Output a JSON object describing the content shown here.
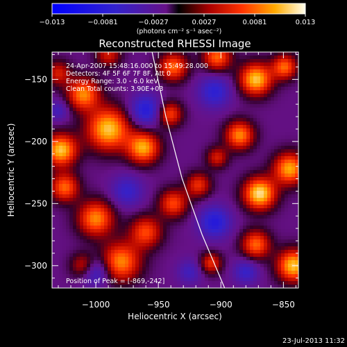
{
  "chart_data": {
    "type": "heatmap",
    "title": "Reconstructed RHESSI Image",
    "xlabel": "Heliocentric X (arcsec)",
    "ylabel": "Heliocentric Y (arcsec)",
    "xlim": [
      -1035,
      -838
    ],
    "ylim": [
      -318,
      -128
    ],
    "xticks": [
      -1000,
      -950,
      -900,
      -850
    ],
    "xtick_labels": [
      "−1000",
      "−950",
      "−900",
      "−850"
    ],
    "yticks": [
      -150,
      -200,
      -250,
      -300
    ],
    "ytick_labels": [
      "−150",
      "−200",
      "−250",
      "−300"
    ],
    "colorbar": {
      "min": -0.013,
      "max": 0.013,
      "tick_labels": [
        "−0.013",
        "−0.0081",
        "−0.0027",
        "0.0027",
        "0.0081",
        "0.013"
      ],
      "label": "(photons cm⁻² s⁻¹ asec⁻²)"
    },
    "annotations": [
      "24-Apr-2007 15:48:16.000 to 15:49:28.000",
      "Detectors: 4F 5F 6F 7F 8F, Att 0",
      "Energy Range: 3.0 - 6.0 keV",
      "Clean     Total counts: 3.90E+03"
    ],
    "peak": {
      "label": "Position of Peak = [-869,-242]",
      "x": -869,
      "y": -242
    },
    "limb": [
      [
        -955,
        -128
      ],
      [
        -944,
        -180
      ],
      [
        -931,
        -230
      ],
      [
        -915,
        -275
      ],
      [
        -897,
        -318
      ]
    ],
    "sources": [
      {
        "x": -1028,
        "y": -207,
        "amp": 0.012,
        "sigma": 9
      },
      {
        "x": -1010,
        "y": -162,
        "amp": 0.01,
        "sigma": 9
      },
      {
        "x": -990,
        "y": -190,
        "amp": 0.012,
        "sigma": 12
      },
      {
        "x": -962,
        "y": -205,
        "amp": 0.011,
        "sigma": 9
      },
      {
        "x": -941,
        "y": -178,
        "amp": 0.008,
        "sigma": 7
      },
      {
        "x": -938,
        "y": -140,
        "amp": 0.009,
        "sigma": 8
      },
      {
        "x": -1000,
        "y": -262,
        "amp": 0.01,
        "sigma": 10
      },
      {
        "x": -1025,
        "y": -237,
        "amp": 0.009,
        "sigma": 8
      },
      {
        "x": -980,
        "y": -297,
        "amp": 0.01,
        "sigma": 11
      },
      {
        "x": -960,
        "y": -273,
        "amp": 0.008,
        "sigma": 9
      },
      {
        "x": -938,
        "y": -250,
        "amp": 0.008,
        "sigma": 8
      },
      {
        "x": -918,
        "y": -235,
        "amp": 0.007,
        "sigma": 7
      },
      {
        "x": -903,
        "y": -213,
        "amp": 0.006,
        "sigma": 6
      },
      {
        "x": -869,
        "y": -242,
        "amp": 0.013,
        "sigma": 9
      },
      {
        "x": -845,
        "y": -222,
        "amp": 0.011,
        "sigma": 9
      },
      {
        "x": -885,
        "y": -195,
        "amp": 0.01,
        "sigma": 8
      },
      {
        "x": -872,
        "y": -150,
        "amp": 0.012,
        "sigma": 9
      },
      {
        "x": -903,
        "y": -132,
        "amp": 0.009,
        "sigma": 8
      },
      {
        "x": -849,
        "y": -140,
        "amp": 0.009,
        "sigma": 7
      },
      {
        "x": -842,
        "y": -300,
        "amp": 0.012,
        "sigma": 9
      },
      {
        "x": -872,
        "y": -283,
        "amp": 0.009,
        "sigma": 8
      },
      {
        "x": -908,
        "y": -298,
        "amp": 0.007,
        "sigma": 6
      },
      {
        "x": -1030,
        "y": -145,
        "amp": 0.006,
        "sigma": 7
      },
      {
        "x": -990,
        "y": -130,
        "amp": 0.006,
        "sigma": 7
      },
      {
        "x": -1010,
        "y": -300,
        "amp": 0.006,
        "sigma": 7
      },
      {
        "x": -960,
        "y": -175,
        "amp": -0.007,
        "sigma": 9
      },
      {
        "x": -975,
        "y": -240,
        "amp": -0.005,
        "sigma": 9
      },
      {
        "x": -905,
        "y": -160,
        "amp": -0.006,
        "sigma": 9
      },
      {
        "x": -905,
        "y": -265,
        "amp": -0.007,
        "sigma": 9
      },
      {
        "x": -1000,
        "y": -305,
        "amp": -0.006,
        "sigma": 8
      },
      {
        "x": -880,
        "y": -305,
        "amp": -0.005,
        "sigma": 7
      },
      {
        "x": -925,
        "y": -305,
        "amp": -0.004,
        "sigma": 7
      },
      {
        "x": -1030,
        "y": -175,
        "amp": -0.004,
        "sigma": 6
      }
    ],
    "footer_date": "23-Jul-2013 11:32"
  }
}
